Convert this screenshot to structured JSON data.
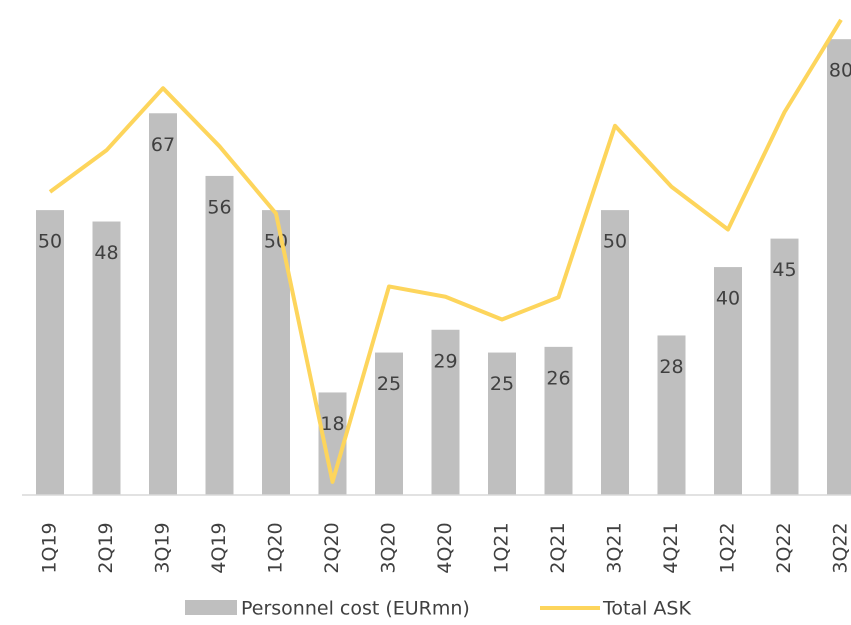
{
  "chart_data": {
    "type": "bar-line",
    "categories": [
      "1Q19",
      "2Q19",
      "3Q19",
      "4Q19",
      "1Q20",
      "2Q20",
      "3Q20",
      "4Q20",
      "1Q21",
      "2Q21",
      "3Q21",
      "4Q21",
      "1Q22",
      "2Q22",
      "3Q22"
    ],
    "series": [
      {
        "name": "Personnel cost (EURmn)",
        "type": "bar",
        "color": "#bfbfbf",
        "values": [
          50,
          48,
          67,
          56,
          50,
          18,
          25,
          29,
          25,
          26,
          50,
          28,
          40,
          45,
          80
        ]
      },
      {
        "name": "Total ASK",
        "type": "line",
        "color": "#fdd55c",
        "values": [
          53.2,
          60.5,
          71.4,
          61.2,
          49.4,
          2.3,
          36.6,
          34.8,
          30.8,
          34.7,
          64.8,
          54.1,
          46.6,
          67.2,
          83.4
        ]
      }
    ],
    "ylim": [
      0,
      86
    ]
  }
}
